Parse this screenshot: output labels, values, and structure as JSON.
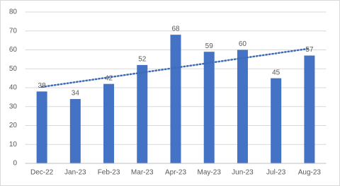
{
  "chart_data": {
    "type": "bar",
    "categories": [
      "Dec-22",
      "Jan-23",
      "Feb-23",
      "Mar-23",
      "Apr-23",
      "May-23",
      "Jun-23",
      "Jul-23",
      "Aug-23"
    ],
    "values": [
      38,
      34,
      42,
      52,
      68,
      59,
      60,
      45,
      57
    ],
    "color": "#4472c4",
    "ylim": [
      0,
      80
    ],
    "yticks": [
      0,
      10,
      20,
      30,
      40,
      50,
      60,
      70,
      80
    ],
    "grid": true,
    "trendline": {
      "color": "#3e6cb5",
      "values": [
        40.4,
        60.7
      ]
    }
  }
}
